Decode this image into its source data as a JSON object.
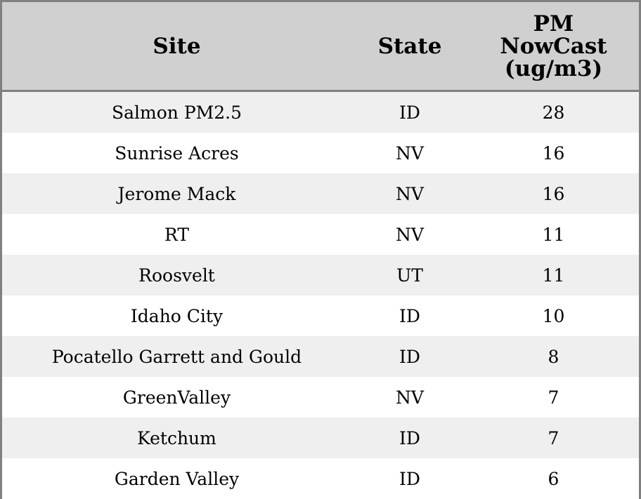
{
  "chart_data": {
    "type": "table",
    "columns": [
      "Site",
      "State",
      "PM NowCast (ug/m3)"
    ],
    "rows": [
      {
        "site": "Salmon PM2.5",
        "state": "ID",
        "pm": "28"
      },
      {
        "site": "Sunrise Acres",
        "state": "NV",
        "pm": "16"
      },
      {
        "site": "Jerome Mack",
        "state": "NV",
        "pm": "16"
      },
      {
        "site": "RT",
        "state": "NV",
        "pm": "11"
      },
      {
        "site": "Roosvelt",
        "state": "UT",
        "pm": "11"
      },
      {
        "site": "Idaho City",
        "state": "ID",
        "pm": "10"
      },
      {
        "site": "Pocatello Garrett and Gould",
        "state": "ID",
        "pm": "8"
      },
      {
        "site": "GreenValley",
        "state": "NV",
        "pm": "7"
      },
      {
        "site": "Ketchum",
        "state": "ID",
        "pm": "7"
      },
      {
        "site": "Garden Valley",
        "state": "ID",
        "pm": "6"
      }
    ],
    "colors": {
      "header_bg": "#d0d0d0",
      "stripe_bg": "#efefef",
      "border": "#808080"
    }
  }
}
